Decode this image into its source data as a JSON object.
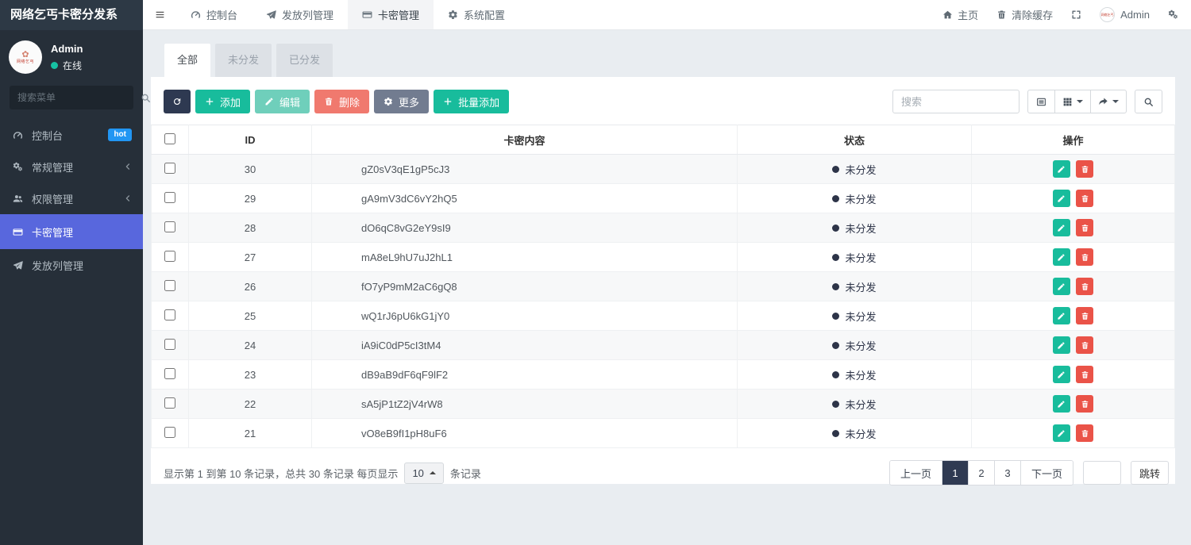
{
  "app": {
    "title": "网络乞丐卡密分发系"
  },
  "topnav": {
    "menu": [
      {
        "label": "控制台",
        "active": false
      },
      {
        "label": "发放列管理",
        "active": false
      },
      {
        "label": "卡密管理",
        "active": true
      },
      {
        "label": "系统配置",
        "active": false
      }
    ],
    "home_label": "主页",
    "clear_cache_label": "清除缓存",
    "username": "Admin"
  },
  "sidebar": {
    "user": {
      "name": "Admin",
      "status": "在线",
      "avatar_text": "网络乞丐"
    },
    "search_placeholder": "搜索菜单",
    "items": [
      {
        "label": "控制台",
        "badge": "hot"
      },
      {
        "label": "常规管理",
        "has_submenu": true
      },
      {
        "label": "权限管理",
        "has_submenu": true
      },
      {
        "label": "卡密管理",
        "active": true
      },
      {
        "label": "发放列管理"
      }
    ]
  },
  "filter_tabs": [
    {
      "label": "全部",
      "active": true
    },
    {
      "label": "未分发",
      "active": false
    },
    {
      "label": "已分发",
      "active": false
    }
  ],
  "toolbar": {
    "add_label": "添加",
    "edit_label": "编辑",
    "delete_label": "删除",
    "more_label": "更多",
    "batch_add_label": "批量添加",
    "search_placeholder": "搜索"
  },
  "table": {
    "columns": [
      "ID",
      "卡密内容",
      "状态",
      "操作"
    ],
    "rows": [
      {
        "id": "30",
        "code": "gZ0sV3qE1gP5cJ3",
        "status": "未分发"
      },
      {
        "id": "29",
        "code": "gA9mV3dC6vY2hQ5",
        "status": "未分发"
      },
      {
        "id": "28",
        "code": "dO6qC8vG2eY9sI9",
        "status": "未分发"
      },
      {
        "id": "27",
        "code": "mA8eL9hU7uJ2hL1",
        "status": "未分发"
      },
      {
        "id": "26",
        "code": "fO7yP9mM2aC6gQ8",
        "status": "未分发"
      },
      {
        "id": "25",
        "code": "wQ1rJ6pU6kG1jY0",
        "status": "未分发"
      },
      {
        "id": "24",
        "code": "iA9iC0dP5cI3tM4",
        "status": "未分发"
      },
      {
        "id": "23",
        "code": "dB9aB9dF6qF9lF2",
        "status": "未分发"
      },
      {
        "id": "22",
        "code": "sA5jP1tZ2jV4rW8",
        "status": "未分发"
      },
      {
        "id": "21",
        "code": "vO8eB9fI1pH8uF6",
        "status": "未分发"
      }
    ]
  },
  "pagination": {
    "summary_before": "显示第 1 到第 10 条记录，总共 30 条记录 每页显示",
    "page_size": "10",
    "summary_after": "条记录",
    "prev_label": "上一页",
    "pages": [
      "1",
      "2",
      "3"
    ],
    "active_page": "1",
    "next_label": "下一页",
    "jump_label": "跳转",
    "jump_value": ""
  },
  "colors": {
    "accent_green": "#18bc9c",
    "accent_red": "#ea5348",
    "active_menu_indigo": "#5867dd",
    "dark_navy": "#2e3951",
    "badge_blue": "#2196f3",
    "status_text": "#2d3448"
  }
}
